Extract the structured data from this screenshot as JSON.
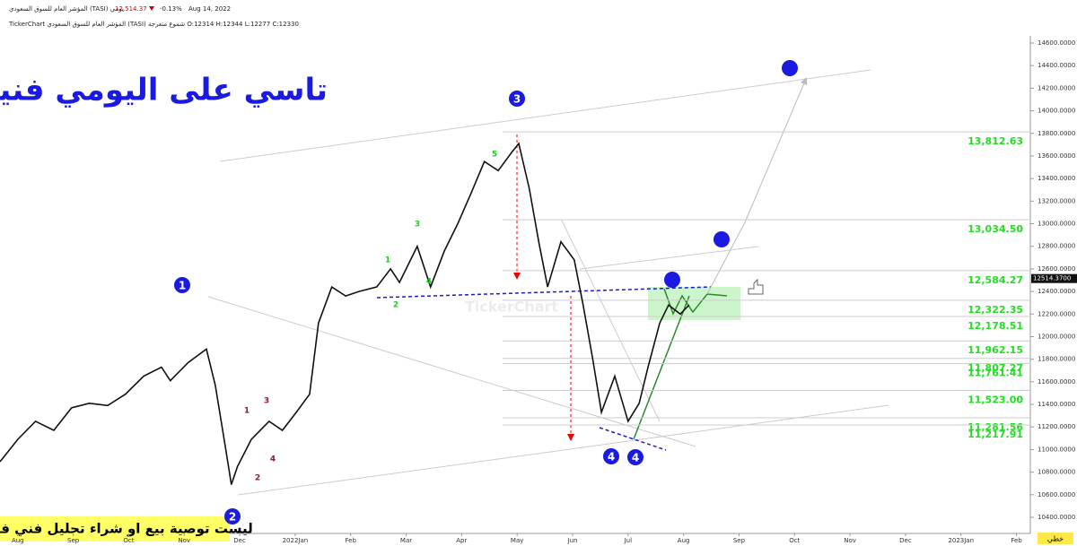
{
  "chart_data": {
    "type": "line",
    "header_line1": "المؤشر العام للسوق السعودي (TASI)  يومي",
    "last_price": "12,514.37",
    "change": "-0.13%",
    "date": "Aug 14, 2022",
    "header_line2": "TickerChart المؤشر العام للسوق السعودي (TASI) شموع متعرجة O:12314 H:12344 L:12277 C:12330",
    "title": "تاسي على اليومي فنياً فقط",
    "disclaimer": "ليست توصية بيع او شراء تحليل فني فقط",
    "chart_style": "خطي",
    "current_price_label": {
      "value": 12514.37,
      "label": "12514.3700"
    },
    "x": [
      -0.32,
      0,
      0.32,
      0.65,
      0.97,
      1.29,
      1.62,
      1.94,
      2.27,
      2.59,
      2.75,
      3.07,
      3.4,
      3.56,
      3.72,
      3.85,
      3.96,
      4.21,
      4.53,
      4.77,
      5.02,
      5.26,
      5.42,
      5.66,
      5.91,
      6.15,
      6.47,
      6.72,
      6.88,
      7.2,
      7.44,
      7.69,
      7.93,
      8.17,
      8.41,
      8.66,
      8.9,
      9.03,
      9.22,
      9.39,
      9.55,
      9.79,
      10.03,
      10.19,
      10.36,
      10.52,
      10.76,
      11,
      11.2,
      11.36,
      11.57,
      11.73,
      11.94,
      12.1
    ],
    "series": [
      {
        "name": "TASI",
        "color": "#111111",
        "values": [
          10892,
          11090,
          11250,
          11170,
          11370,
          11410,
          11390,
          11490,
          11650,
          11730,
          11610,
          11770,
          11890,
          11570,
          11090,
          10690,
          10850,
          11090,
          11250,
          11170,
          11330,
          11490,
          12120,
          12440,
          12360,
          12400,
          12440,
          12600,
          12480,
          12800,
          12440,
          12760,
          13000,
          13270,
          13550,
          13470,
          13630,
          13710,
          13310,
          12840,
          12440,
          12840,
          12680,
          12280,
          11810,
          11330,
          11650,
          11250,
          11410,
          11730,
          12120,
          12280,
          12200,
          12280
        ]
      }
    ],
    "xlim": [
      -0.32,
      18.25
    ],
    "xticks": [
      {
        "value": 0,
        "label": "Aug"
      },
      {
        "value": 1,
        "label": "Sep"
      },
      {
        "value": 2,
        "label": "Oct"
      },
      {
        "value": 3,
        "label": "Nov"
      },
      {
        "value": 4,
        "label": "Dec"
      },
      {
        "value": 5,
        "label": "2022Jan"
      },
      {
        "value": 6,
        "label": "Feb"
      },
      {
        "value": 7,
        "label": "Mar"
      },
      {
        "value": 8,
        "label": "Apr"
      },
      {
        "value": 9,
        "label": "May"
      },
      {
        "value": 10,
        "label": "Jun"
      },
      {
        "value": 11,
        "label": "Jul"
      },
      {
        "value": 12,
        "label": "Aug"
      },
      {
        "value": 13,
        "label": "Sep"
      },
      {
        "value": 14,
        "label": "Oct"
      },
      {
        "value": 15,
        "label": "Nov"
      },
      {
        "value": 16,
        "label": "Dec"
      },
      {
        "value": 17,
        "label": "2023Jan"
      },
      {
        "value": 18,
        "label": "Feb"
      }
    ],
    "ylim": [
      10300,
      14700
    ],
    "yticks": [
      {
        "value": 14600,
        "label": "14600.0000"
      },
      {
        "value": 14400,
        "label": "14400.0000"
      },
      {
        "value": 14200,
        "label": "14200.0000"
      },
      {
        "value": 14000,
        "label": "14000.0000"
      },
      {
        "value": 13800,
        "label": "13800.0000"
      },
      {
        "value": 13600,
        "label": "13600.0000"
      },
      {
        "value": 13400,
        "label": "13400.0000"
      },
      {
        "value": 13200,
        "label": "13200.0000"
      },
      {
        "value": 13000,
        "label": "13000.0000"
      },
      {
        "value": 12800,
        "label": "12800.0000"
      },
      {
        "value": 12600,
        "label": "12600.0000"
      },
      {
        "value": 12400,
        "label": "12400.0000"
      },
      {
        "value": 12200,
        "label": "12200.0000"
      },
      {
        "value": 12000,
        "label": "12000.0000"
      },
      {
        "value": 11800,
        "label": "11800.0000"
      },
      {
        "value": 11600,
        "label": "11600.0000"
      },
      {
        "value": 11400,
        "label": "11400.0000"
      },
      {
        "value": 11200,
        "label": "11200.0000"
      },
      {
        "value": 11000,
        "label": "11000.0000"
      },
      {
        "value": 10800,
        "label": "10800.0000"
      },
      {
        "value": 10600,
        "label": "10600.0000"
      },
      {
        "value": 10400,
        "label": "10400.0000"
      }
    ],
    "levels": {
      "values": [
        13812.63,
        13034.5,
        12584.27,
        12322.35,
        12178.51,
        11962.15,
        11807.27,
        11761.41,
        11523,
        11281.56,
        11217.91
      ],
      "value_labels": [
        "13,812.63",
        "13,034.50",
        "12,584.27",
        "12,322.35",
        "12,178.51",
        "11,962.15",
        "11,807.27",
        "11,761.41",
        "11,523.00",
        "11,281.56",
        "11,217.91"
      ]
    },
    "wave_labels": [
      "1",
      "2",
      "3",
      "4",
      "4",
      "5",
      "3",
      "1",
      "4",
      "2",
      "1",
      "3",
      "4",
      "2"
    ],
    "watermark": "TickerChart"
  }
}
